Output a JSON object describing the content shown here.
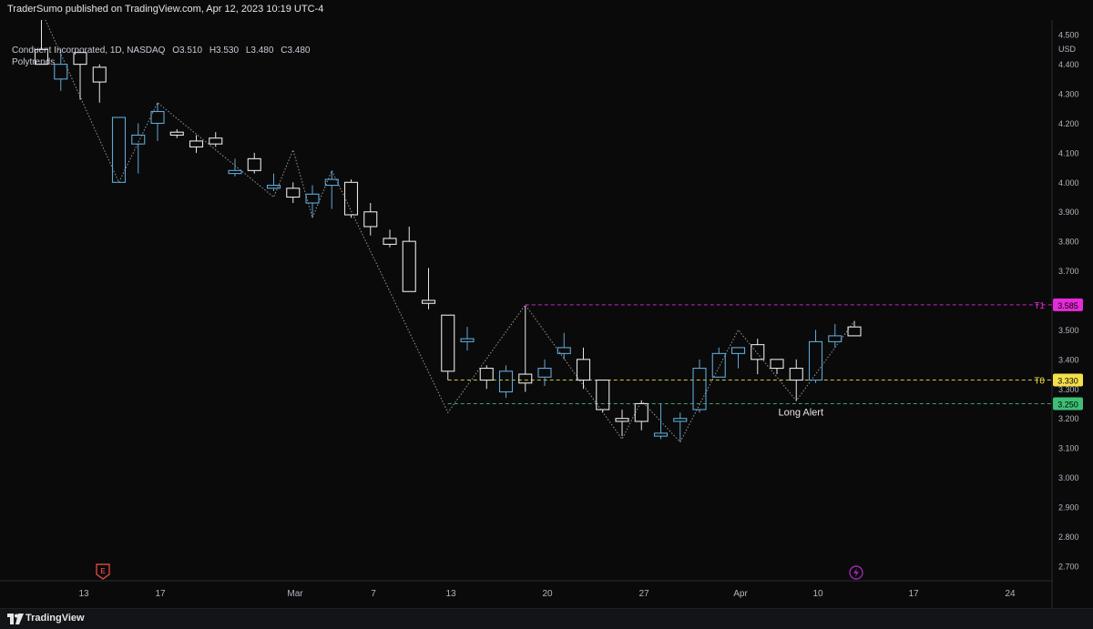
{
  "header": {
    "published": "TraderSumo published on TradingView.com, Apr 12, 2023 10:19 UTC-4"
  },
  "legend": {
    "symbol": "Conduent Incorporated, 1D, NASDAQ",
    "open": "O3.510",
    "high": "H3.530",
    "low": "L3.480",
    "close": "C3.480",
    "indicator": "Polytrends"
  },
  "footer": {
    "brand": "TradingView"
  },
  "colors": {
    "background": "#0a0a0b",
    "up_candle": "#5fa8d3",
    "down_candle": "#e6e6e6",
    "t1": "#e62bd8",
    "t0": "#f5e04a",
    "long": "#3fbf74",
    "trend_line": "#9a9a9a"
  },
  "chart_data": {
    "type": "candlestick",
    "y_unit": "USD",
    "ylim": [
      2.65,
      4.55
    ],
    "y_ticks": [
      "4.500",
      "4.400",
      "4.300",
      "4.200",
      "4.100",
      "4.000",
      "3.900",
      "3.800",
      "3.700",
      "3.600",
      "3.500",
      "3.400",
      "3.300",
      "3.200",
      "3.100",
      "3.000",
      "2.900",
      "2.800",
      "2.700"
    ],
    "x_ticks": [
      "13",
      "17",
      "Mar",
      "7",
      "13",
      "20",
      "27",
      "Apr",
      "10",
      "17",
      "24"
    ],
    "candles": [
      {
        "o": 4.45,
        "h": 4.58,
        "l": 4.4,
        "c": 4.4
      },
      {
        "o": 4.35,
        "h": 4.45,
        "l": 4.31,
        "c": 4.4
      },
      {
        "o": 4.44,
        "h": 4.44,
        "l": 4.28,
        "c": 4.4
      },
      {
        "o": 4.39,
        "h": 4.4,
        "l": 4.27,
        "c": 4.34
      },
      {
        "o": 4.0,
        "h": 4.22,
        "l": 4.0,
        "c": 4.22
      },
      {
        "o": 4.13,
        "h": 4.2,
        "l": 4.03,
        "c": 4.16
      },
      {
        "o": 4.2,
        "h": 4.27,
        "l": 4.14,
        "c": 4.24
      },
      {
        "o": 4.17,
        "h": 4.18,
        "l": 4.15,
        "c": 4.16
      },
      {
        "o": 4.14,
        "h": 4.16,
        "l": 4.1,
        "c": 4.12
      },
      {
        "o": 4.15,
        "h": 4.17,
        "l": 4.12,
        "c": 4.13
      },
      {
        "o": 4.03,
        "h": 4.08,
        "l": 4.02,
        "c": 4.04
      },
      {
        "o": 4.08,
        "h": 4.1,
        "l": 4.03,
        "c": 4.04
      },
      {
        "o": 3.98,
        "h": 4.03,
        "l": 3.97,
        "c": 3.99
      },
      {
        "o": 3.98,
        "h": 4.0,
        "l": 3.93,
        "c": 3.95
      },
      {
        "o": 3.93,
        "h": 3.99,
        "l": 3.88,
        "c": 3.96
      },
      {
        "o": 3.99,
        "h": 4.04,
        "l": 3.91,
        "c": 4.01
      },
      {
        "o": 4.0,
        "h": 4.01,
        "l": 3.88,
        "c": 3.89
      },
      {
        "o": 3.9,
        "h": 3.93,
        "l": 3.82,
        "c": 3.85
      },
      {
        "o": 3.81,
        "h": 3.84,
        "l": 3.78,
        "c": 3.79
      },
      {
        "o": 3.8,
        "h": 3.85,
        "l": 3.63,
        "c": 3.63
      },
      {
        "o": 3.6,
        "h": 3.71,
        "l": 3.57,
        "c": 3.59
      },
      {
        "o": 3.55,
        "h": 3.55,
        "l": 3.33,
        "c": 3.36
      },
      {
        "o": 3.46,
        "h": 3.51,
        "l": 3.43,
        "c": 3.47
      },
      {
        "o": 3.37,
        "h": 3.38,
        "l": 3.3,
        "c": 3.33
      },
      {
        "o": 3.29,
        "h": 3.38,
        "l": 3.27,
        "c": 3.36
      },
      {
        "o": 3.35,
        "h": 3.58,
        "l": 3.29,
        "c": 3.32
      },
      {
        "o": 3.34,
        "h": 3.4,
        "l": 3.31,
        "c": 3.37
      },
      {
        "o": 3.42,
        "h": 3.49,
        "l": 3.4,
        "c": 3.44
      },
      {
        "o": 3.4,
        "h": 3.44,
        "l": 3.3,
        "c": 3.33
      },
      {
        "o": 3.33,
        "h": 3.33,
        "l": 3.22,
        "c": 3.23
      },
      {
        "o": 3.2,
        "h": 3.23,
        "l": 3.14,
        "c": 3.19
      },
      {
        "o": 3.25,
        "h": 3.26,
        "l": 3.16,
        "c": 3.19
      },
      {
        "o": 3.14,
        "h": 3.25,
        "l": 3.13,
        "c": 3.15
      },
      {
        "o": 3.19,
        "h": 3.22,
        "l": 3.12,
        "c": 3.2
      },
      {
        "o": 3.23,
        "h": 3.4,
        "l": 3.22,
        "c": 3.37
      },
      {
        "o": 3.34,
        "h": 3.44,
        "l": 3.34,
        "c": 3.42
      },
      {
        "o": 3.42,
        "h": 3.44,
        "l": 3.37,
        "c": 3.44
      },
      {
        "o": 3.45,
        "h": 3.47,
        "l": 3.35,
        "c": 3.4
      },
      {
        "o": 3.4,
        "h": 3.4,
        "l": 3.35,
        "c": 3.37
      },
      {
        "o": 3.37,
        "h": 3.4,
        "l": 3.26,
        "c": 3.33
      },
      {
        "o": 3.33,
        "h": 3.5,
        "l": 3.32,
        "c": 3.46
      },
      {
        "o": 3.46,
        "h": 3.52,
        "l": 3.44,
        "c": 3.48
      },
      {
        "o": 3.51,
        "h": 3.53,
        "l": 3.48,
        "c": 3.48
      }
    ],
    "levels": [
      {
        "label": "T1",
        "value": 3.585,
        "price_label": "3.585",
        "color": "#e62bd8"
      },
      {
        "label": "T0",
        "value": 3.33,
        "price_label": "3.330",
        "color": "#f5e04a"
      },
      {
        "label": "",
        "value": 3.25,
        "price_label": "3.250",
        "color": "#3fbf74"
      }
    ],
    "annotations": [
      {
        "text": "Long Alert",
        "date_index": 39,
        "price": 3.21
      }
    ],
    "trend_points": [
      {
        "i": 0,
        "p": 4.58
      },
      {
        "i": 4,
        "p": 4.0
      },
      {
        "i": 6,
        "p": 4.27
      },
      {
        "i": 12,
        "p": 3.95
      },
      {
        "i": 13,
        "p": 4.11
      },
      {
        "i": 14,
        "p": 3.88
      },
      {
        "i": 15,
        "p": 4.04
      },
      {
        "i": 21,
        "p": 3.22
      },
      {
        "i": 25,
        "p": 3.585
      },
      {
        "i": 30,
        "p": 3.13
      },
      {
        "i": 31,
        "p": 3.26
      },
      {
        "i": 33,
        "p": 3.12
      },
      {
        "i": 36,
        "p": 3.5
      },
      {
        "i": 39,
        "p": 3.26
      },
      {
        "i": 42,
        "p": 3.53
      }
    ],
    "markers": [
      "earnings-icon",
      "split-icon"
    ]
  }
}
